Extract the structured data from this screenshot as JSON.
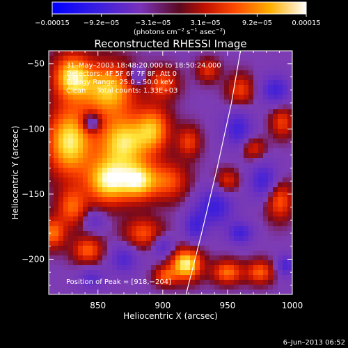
{
  "colorbar": {
    "tick_labels": [
      "−0.00015",
      "−9.2e−05",
      "−3.1e−05",
      "3.1e−05",
      "9.2e−05",
      "0.00015"
    ],
    "tick_values": [
      -0.00015,
      -9.2e-05,
      -3.1e-05,
      3.1e-05,
      9.2e-05,
      0.00015
    ],
    "range": [
      -0.00015,
      0.00015
    ],
    "unit_main": "(photons cm",
    "unit_sup1": "−2",
    "unit_mid": " s",
    "unit_sup2": "−1",
    "unit_mid2": " asec",
    "unit_sup3": "−2",
    "unit_end": ")"
  },
  "chart_data": {
    "type": "heatmap",
    "title": "Reconstructed RHESSI Image",
    "xlabel": "Heliocentric X (arcsec)",
    "ylabel": "Heliocentric Y (arcsec)",
    "xlim": [
      812,
      1000
    ],
    "ylim": [
      -227,
      -40
    ],
    "x_ticks": [
      850,
      900,
      950,
      1000
    ],
    "y_ticks": [
      -50,
      -100,
      -150,
      -200
    ],
    "x_tick_labels": [
      "850",
      "900",
      "950",
      "1000"
    ],
    "y_tick_labels": [
      "−50",
      "−100",
      "−150",
      "−200"
    ],
    "colorscale": [
      "#0000ff",
      "#5a2bd0",
      "#7a32b8",
      "#8a1010",
      "#ff3000",
      "#ff9a00",
      "#ffe840",
      "#ffffff"
    ],
    "annotations": [
      "31–May–2003 18:48:20.000 to 18:50:24.000",
      "Detectors: 4F 5F 6F 7F 8F, Att 0",
      "Energy Range: 25.0 – 50.0 keV",
      "Clean     Total counts: 1.33E+03"
    ],
    "peak_label": "Position of Peak = [918,−204]",
    "peak": [
      918,
      -204
    ],
    "limb_line": [
      [
        918,
        -227
      ],
      [
        930,
        -180
      ],
      [
        942,
        -130
      ],
      [
        953,
        -80
      ],
      [
        960,
        -40
      ]
    ],
    "blobs": [
      {
        "x": 830,
        "y": -60,
        "sx": 10,
        "sy": 12,
        "a": 0.9
      },
      {
        "x": 858,
        "y": -70,
        "sx": 14,
        "sy": 14,
        "a": 0.85
      },
      {
        "x": 828,
        "y": -110,
        "sx": 12,
        "sy": 18,
        "a": 0.95
      },
      {
        "x": 870,
        "y": -110,
        "sx": 14,
        "sy": 14,
        "a": 0.9
      },
      {
        "x": 858,
        "y": -140,
        "sx": 12,
        "sy": 12,
        "a": 0.95
      },
      {
        "x": 882,
        "y": -140,
        "sx": 10,
        "sy": 10,
        "a": 0.85
      },
      {
        "x": 893,
        "y": -100,
        "sx": 9,
        "sy": 12,
        "a": 0.65
      },
      {
        "x": 905,
        "y": -140,
        "sx": 10,
        "sy": 10,
        "a": 0.5
      },
      {
        "x": 830,
        "y": -160,
        "sx": 8,
        "sy": 10,
        "a": 0.55
      },
      {
        "x": 900,
        "y": -65,
        "sx": 8,
        "sy": 8,
        "a": 0.5
      },
      {
        "x": 920,
        "y": -110,
        "sx": 6,
        "sy": 8,
        "a": 0.45
      },
      {
        "x": 842,
        "y": -193,
        "sx": 8,
        "sy": 7,
        "a": 0.55
      },
      {
        "x": 815,
        "y": -180,
        "sx": 7,
        "sy": 8,
        "a": 0.6
      },
      {
        "x": 885,
        "y": -180,
        "sx": 10,
        "sy": 8,
        "a": 0.5
      },
      {
        "x": 918,
        "y": -204,
        "sx": 8,
        "sy": 8,
        "a": 1.0
      },
      {
        "x": 902,
        "y": -213,
        "sx": 6,
        "sy": 5,
        "a": 0.5
      },
      {
        "x": 950,
        "y": -210,
        "sx": 8,
        "sy": 6,
        "a": 0.6
      },
      {
        "x": 990,
        "y": -155,
        "sx": 7,
        "sy": 10,
        "a": 0.55
      },
      {
        "x": 975,
        "y": -210,
        "sx": 7,
        "sy": 6,
        "a": 0.55
      },
      {
        "x": 960,
        "y": -70,
        "sx": 7,
        "sy": 8,
        "a": 0.45
      },
      {
        "x": 992,
        "y": -95,
        "sx": 6,
        "sy": 8,
        "a": 0.45
      },
      {
        "x": 950,
        "y": -140,
        "sx": 6,
        "sy": 6,
        "a": 0.4
      },
      {
        "x": 970,
        "y": -115,
        "sx": 6,
        "sy": 6,
        "a": 0.4
      },
      {
        "x": 935,
        "y": -55,
        "sx": 6,
        "sy": 6,
        "a": 0.4
      },
      {
        "x": 960,
        "y": -180,
        "sx": 7,
        "sy": 6,
        "a": -0.5
      },
      {
        "x": 940,
        "y": -160,
        "sx": 10,
        "sy": 10,
        "a": -0.55
      },
      {
        "x": 978,
        "y": -140,
        "sx": 8,
        "sy": 10,
        "a": -0.5
      },
      {
        "x": 958,
        "y": -100,
        "sx": 8,
        "sy": 10,
        "a": -0.5
      },
      {
        "x": 987,
        "y": -70,
        "sx": 8,
        "sy": 8,
        "a": -0.5
      },
      {
        "x": 925,
        "y": -175,
        "sx": 6,
        "sy": 8,
        "a": -0.45
      },
      {
        "x": 870,
        "y": -200,
        "sx": 8,
        "sy": 8,
        "a": -0.4
      },
      {
        "x": 845,
        "y": -215,
        "sx": 7,
        "sy": 6,
        "a": -0.35
      },
      {
        "x": 900,
        "y": -190,
        "sx": 6,
        "sy": 6,
        "a": -0.4
      },
      {
        "x": 845,
        "y": -95,
        "sx": 5,
        "sy": 5,
        "a": -0.6
      },
      {
        "x": 880,
        "y": -60,
        "sx": 5,
        "sy": 5,
        "a": -0.4
      },
      {
        "x": 847,
        "y": -170,
        "sx": 6,
        "sy": 6,
        "a": -0.3
      },
      {
        "x": 995,
        "y": -205,
        "sx": 5,
        "sy": 6,
        "a": -0.45
      }
    ]
  },
  "footer": {
    "date": "6–Jun–2013 06:52"
  }
}
